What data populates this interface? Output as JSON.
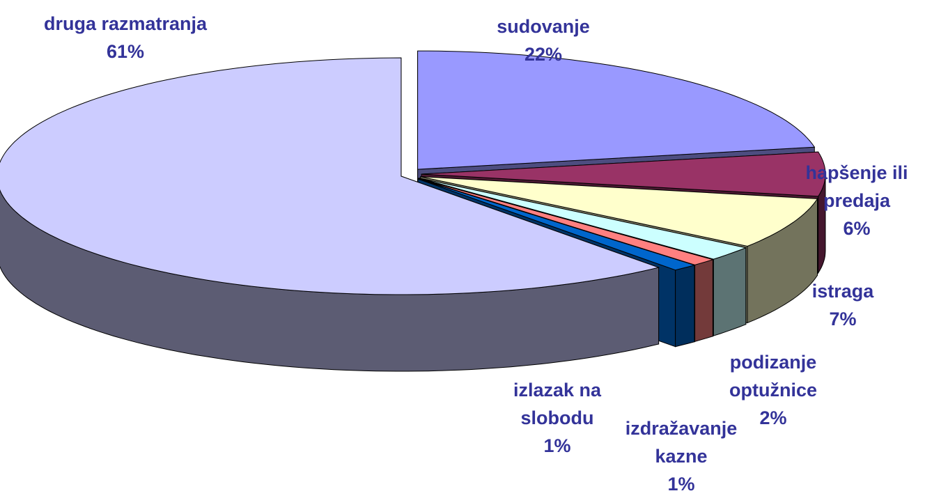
{
  "chart_data": {
    "type": "pie",
    "categories": [
      "sudovanje",
      "hapšenje ili predaja",
      "istraga",
      "podizanje optužnice",
      "izdražavanje kazne",
      "izlazak na slobodu",
      "druga razmatranja"
    ],
    "values": [
      22,
      6,
      7,
      2,
      1,
      1,
      61
    ],
    "value_labels": [
      "22%",
      "6%",
      "7%",
      "2%",
      "1%",
      "1%",
      "61%"
    ],
    "colors": [
      "#9999ff",
      "#993366",
      "#ffffcc",
      "#ccffff",
      "#ff8080",
      "#0066cc",
      "#ccccff"
    ]
  }
}
